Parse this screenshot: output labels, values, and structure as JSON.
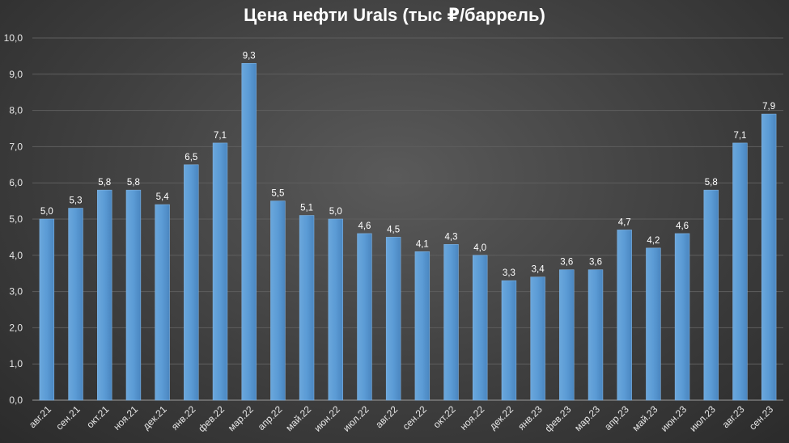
{
  "chart_data": {
    "type": "bar",
    "title": "Цена нефти Urals (тыс ₽/баррель)",
    "categories": [
      "авг.21",
      "сен.21",
      "окт.21",
      "ноя.21",
      "дек.21",
      "янв.22",
      "фев.22",
      "мар.22",
      "апр.22",
      "май.22",
      "июн.22",
      "июл.22",
      "авг.22",
      "сен.22",
      "окт.22",
      "ноя.22",
      "дек.22",
      "янв.23",
      "фев.23",
      "мар.23",
      "апр.23",
      "май.23",
      "июн.23",
      "июл.23",
      "авг.23",
      "сен.23"
    ],
    "values": [
      5.0,
      5.3,
      5.8,
      5.8,
      5.4,
      6.5,
      7.1,
      9.3,
      5.5,
      5.1,
      5.0,
      4.6,
      4.5,
      4.1,
      4.3,
      4.0,
      3.3,
      3.4,
      3.6,
      3.6,
      4.7,
      4.2,
      4.6,
      5.8,
      7.1,
      7.9
    ],
    "value_labels": [
      "5,0",
      "5,3",
      "5,8",
      "5,8",
      "5,4",
      "6,5",
      "7,1",
      "9,3",
      "5,5",
      "5,1",
      "5,0",
      "4,6",
      "4,5",
      "4,1",
      "4,3",
      "4,0",
      "3,3",
      "3,4",
      "3,6",
      "3,6",
      "4,7",
      "4,2",
      "4,6",
      "5,8",
      "7,1",
      "7,9"
    ],
    "y_ticks": [
      "0,0",
      "1,0",
      "2,0",
      "3,0",
      "4,0",
      "5,0",
      "6,0",
      "7,0",
      "8,0",
      "9,0",
      "10,0"
    ],
    "ylim": [
      0,
      10
    ],
    "grid": true,
    "bar_color": "#5b9bd5",
    "xlabel": "",
    "ylabel": ""
  }
}
